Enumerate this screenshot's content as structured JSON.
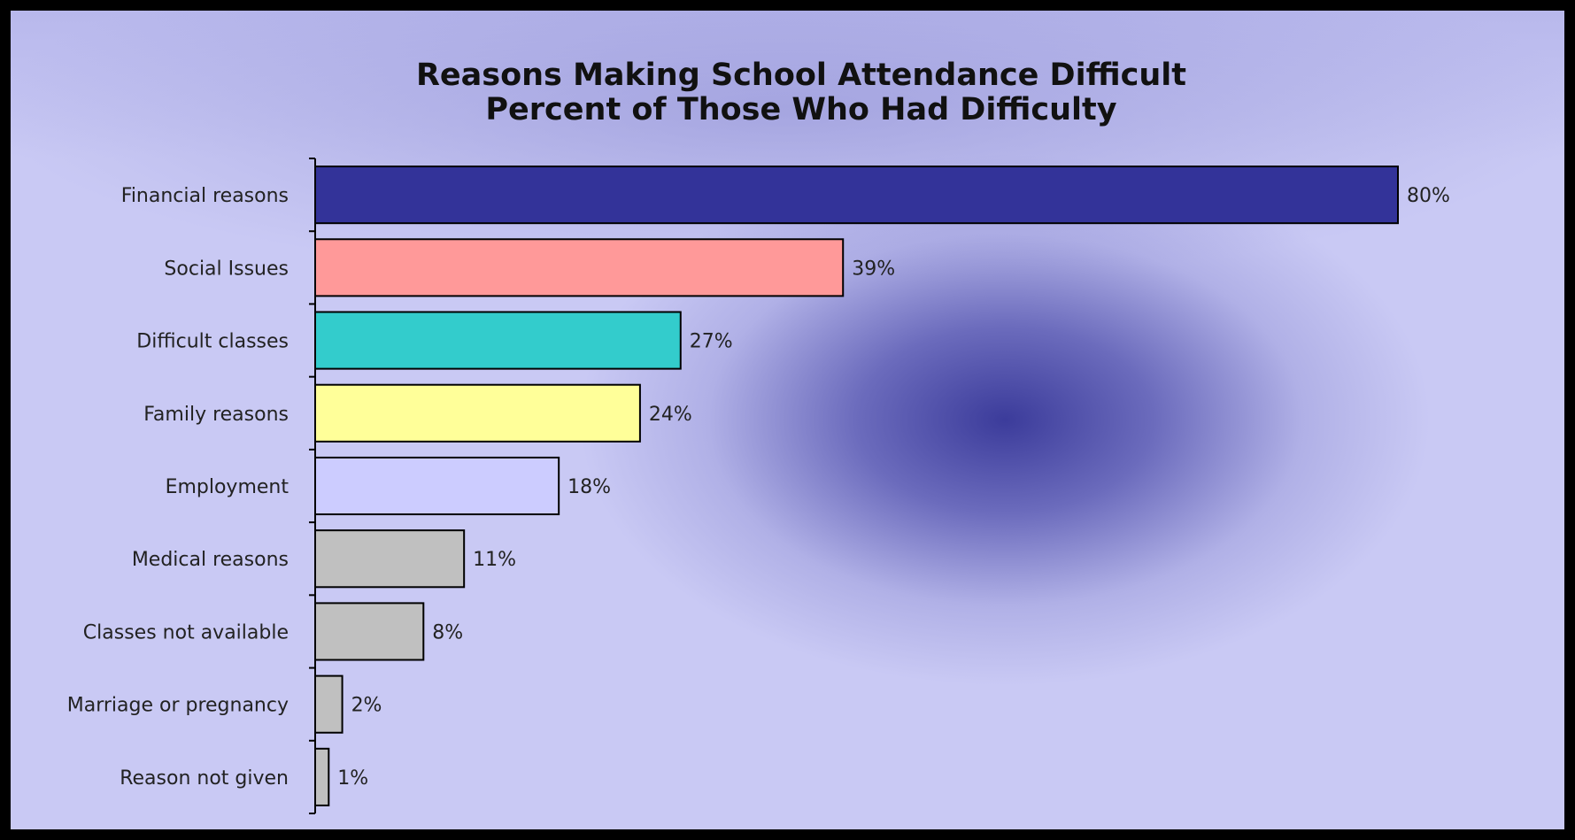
{
  "chart_data": {
    "type": "bar",
    "orientation": "horizontal",
    "title": "Reasons Making School Attendance Difficult",
    "subtitle": "Percent of Those Who Had Difficulty",
    "categories": [
      "Financial reasons",
      "Social Issues",
      "Difficult classes",
      "Family reasons",
      "Employment",
      "Medical reasons",
      "Classes not available",
      "Marriage or pregnancy",
      "Reason not given"
    ],
    "values": [
      80,
      39,
      27,
      24,
      18,
      11,
      8,
      2,
      1
    ],
    "value_labels": [
      "80%",
      "39%",
      "27%",
      "24%",
      "18%",
      "11%",
      "8%",
      "2%",
      "1%"
    ],
    "bar_colors": [
      "#333399",
      "#ff9999",
      "#33cccc",
      "#ffff99",
      "#ccccff",
      "#c0c0c0",
      "#c0c0c0",
      "#c0c0c0",
      "#c0c0c0"
    ],
    "xlim": [
      0,
      80
    ],
    "grid": false,
    "legend": "none"
  }
}
